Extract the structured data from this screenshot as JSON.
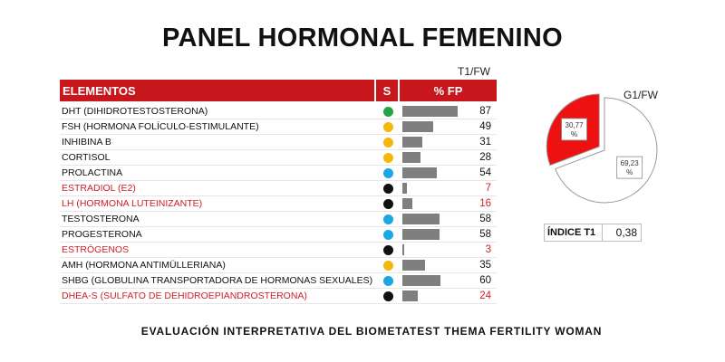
{
  "title": "PANEL HORMONAL FEMENINO",
  "footer": "EVALUACIÓN INTERPRETATIVA DEL BIOMETATEST THEMA FERTILITY WOMAN",
  "colors": {
    "header": "#c8161d",
    "red_text": "#d0202a",
    "pie_red": "#ee1111",
    "bar": "#7f7f7f"
  },
  "chart_data": [
    {
      "type": "bar",
      "title": "",
      "table_headers": {
        "elements": "ELEMENTOS",
        "status": "S",
        "fp": "% FP"
      },
      "series_label": "T1/FW",
      "xlim": [
        0,
        100
      ],
      "rows": [
        {
          "name": "DHT (DIHIDROTESTOSTERONA)",
          "status": "green",
          "status_color": "#22a447",
          "value": 87,
          "highlight": false
        },
        {
          "name": "FSH (HORMONA FOLÍCULO-ESTIMULANTE)",
          "status": "yellow",
          "status_color": "#f5b70a",
          "value": 49,
          "highlight": false
        },
        {
          "name": "INHIBINA B",
          "status": "yellow",
          "status_color": "#f5b70a",
          "value": 31,
          "highlight": false
        },
        {
          "name": "CORTISOL",
          "status": "yellow",
          "status_color": "#f5b70a",
          "value": 28,
          "highlight": false
        },
        {
          "name": "PROLACTINA",
          "status": "blue",
          "status_color": "#1ba7e6",
          "value": 54,
          "highlight": false
        },
        {
          "name": "ESTRADIOL (E2)",
          "status": "black",
          "status_color": "#111111",
          "value": 7,
          "highlight": true
        },
        {
          "name": "LH (HORMONA LUTEINIZANTE)",
          "status": "black",
          "status_color": "#111111",
          "value": 16,
          "highlight": true
        },
        {
          "name": "TESTOSTERONA",
          "status": "blue",
          "status_color": "#1ba7e6",
          "value": 58,
          "highlight": false
        },
        {
          "name": "PROGESTERONA",
          "status": "blue",
          "status_color": "#1ba7e6",
          "value": 58,
          "highlight": false
        },
        {
          "name": "ESTRÓGENOS",
          "status": "black",
          "status_color": "#111111",
          "value": 3,
          "highlight": true
        },
        {
          "name": "AMH (HORMONA ANTIMÜLLERIANA)",
          "status": "yellow",
          "status_color": "#f5b70a",
          "value": 35,
          "highlight": false
        },
        {
          "name": "SHBG (GLOBULINA TRANSPORTADORA DE HORMONAS SEXUALES)",
          "status": "blue",
          "status_color": "#1ba7e6",
          "value": 60,
          "highlight": false
        },
        {
          "name": "DHEA-S (SULFATO DE DEHIDROEPIANDROSTERONA)",
          "status": "black",
          "status_color": "#111111",
          "value": 24,
          "highlight": true
        }
      ]
    },
    {
      "type": "pie",
      "title": "G1/FW",
      "slices": [
        {
          "label": "30,77\n%",
          "value": 30.77,
          "color": "#ee1111",
          "exploded": true
        },
        {
          "label": "69,23\n%",
          "value": 69.23,
          "color": "#ffffff",
          "exploded": false
        }
      ]
    }
  ],
  "indice": {
    "label": "ÍNDICE T1",
    "value": "0,38"
  }
}
